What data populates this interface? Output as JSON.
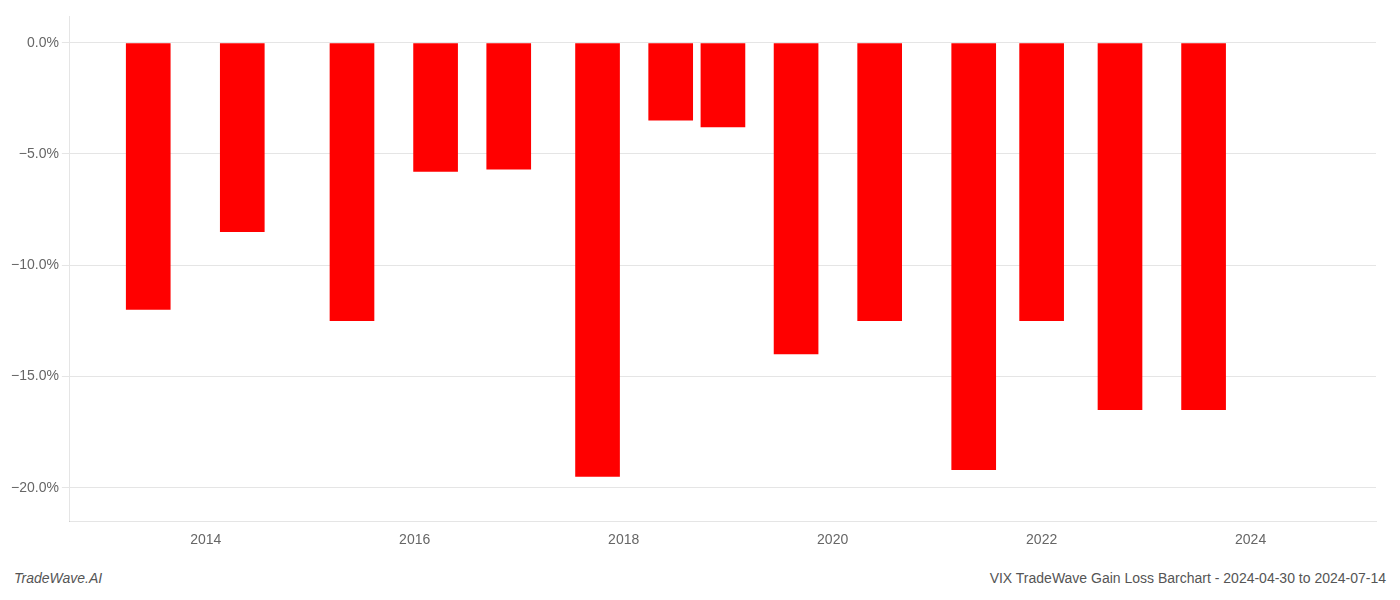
{
  "chart_data": {
    "type": "bar",
    "x": [
      2013.45,
      2014.35,
      2015.4,
      2016.2,
      2016.9,
      2017.75,
      2018.45,
      2018.95,
      2019.65,
      2020.45,
      2021.35,
      2022.0,
      2022.75,
      2023.55
    ],
    "values": [
      -12.0,
      -8.5,
      -12.5,
      -5.8,
      -5.7,
      -19.5,
      -3.5,
      -3.8,
      -14.0,
      -12.5,
      -19.2,
      -12.5,
      -16.5,
      -16.5
    ],
    "color": "#ff0000",
    "xlim": [
      2012.7,
      2025.2
    ],
    "xticks": [
      2014,
      2016,
      2018,
      2020,
      2022,
      2024
    ],
    "ylim": [
      -21.5,
      1.2
    ],
    "yticks": [
      {
        "value": 0.0,
        "label": "0.0%"
      },
      {
        "value": -5.0,
        "label": "−5.0%"
      },
      {
        "value": -10.0,
        "label": "−10.0%"
      },
      {
        "value": -15.0,
        "label": "−15.0%"
      },
      {
        "value": -20.0,
        "label": "−20.0%"
      }
    ],
    "grid": "y",
    "annotations": [
      {
        "text": "TradeWave.AI"
      },
      {
        "text": "VIX TradeWave Gain Loss Barchart - 2024-04-30 to 2024-07-14"
      }
    ]
  }
}
